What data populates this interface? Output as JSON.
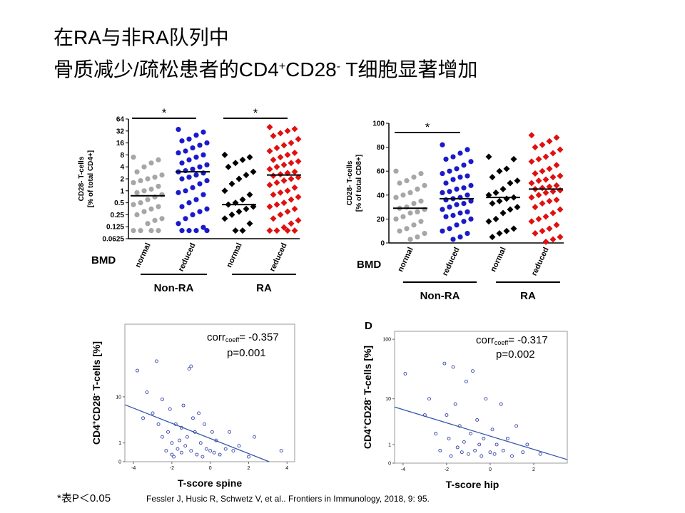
{
  "slide_title": {
    "line1": "在RA与非RA队列中",
    "line2": [
      "骨质减少/疏松患者的CD4",
      "+",
      "CD28",
      "-",
      " T细胞显著增加"
    ]
  },
  "footnote": "*表P＜0.05",
  "citation": "Fessler J, Husic R, Schwetz V, et al.. Frontiers in Immunology, 2018, 9: 95.",
  "chart_data": [
    {
      "type": "strip",
      "ylabel": [
        "CD28- T-cells",
        "[% of total CD4+]"
      ],
      "category_axis_label": "BMD",
      "categories": [
        "normal",
        "reduced",
        "normal",
        "reduced"
      ],
      "groups": [
        {
          "label": "Non-RA",
          "categories": [
            0,
            1
          ]
        },
        {
          "label": "RA",
          "categories": [
            2,
            3
          ]
        }
      ],
      "colors": [
        "#a6a6a6",
        "#1a1acc",
        "#000000",
        "#e01010"
      ],
      "markers": [
        "circle",
        "circle",
        "diamond",
        "diamond"
      ],
      "log_base": 2,
      "ylim": [
        0.0625,
        64
      ],
      "yticks": [
        64,
        32,
        16,
        8,
        4,
        2,
        1,
        0.5,
        0.25,
        0.125,
        0.0625
      ],
      "values": [
        [
          7,
          6,
          5,
          4,
          3,
          2.5,
          2.2,
          2,
          1.8,
          1.6,
          1.3,
          1.1,
          1,
          0.9,
          0.8,
          0.7,
          0.6,
          0.5,
          0.45,
          0.4,
          0.35,
          0.3,
          0.25,
          0.2,
          0.18,
          0.15,
          0.1,
          0.1,
          0.1,
          0.1
        ],
        [
          35,
          30,
          25,
          20,
          18,
          16,
          14,
          12,
          10,
          9,
          8,
          7,
          6,
          5,
          4.5,
          4,
          3.5,
          3.2,
          3,
          2.8,
          2.5,
          2.2,
          2,
          1.8,
          1.5,
          1.2,
          1,
          0.9,
          0.8,
          0.6,
          0.5,
          0.4,
          0.35,
          0.3,
          0.25,
          0.2,
          0.15,
          0.12,
          0.1,
          0.1,
          0.1,
          0.1
        ],
        [
          8,
          7,
          6,
          5,
          4,
          3,
          2.5,
          2,
          1.5,
          1,
          0.8,
          0.6,
          0.5,
          0.45,
          0.4,
          0.35,
          0.3,
          0.25,
          0.2,
          0.15,
          0.1,
          0.1
        ],
        [
          40,
          36,
          32,
          28,
          24,
          20,
          16,
          14,
          12,
          10,
          9,
          8,
          7,
          6,
          5.5,
          5,
          4.5,
          4,
          3.5,
          3,
          2.8,
          2.6,
          2.4,
          2.2,
          2,
          1.8,
          1.6,
          1.4,
          1.2,
          1,
          0.9,
          0.8,
          0.7,
          0.6,
          0.5,
          0.45,
          0.4,
          0.35,
          0.3,
          0.25,
          0.2,
          0.18,
          0.15,
          0.12,
          0.1,
          0.1,
          0.1,
          0.1
        ]
      ],
      "medians": [
        0.75,
        3,
        0.45,
        2.5
      ],
      "significance": [
        {
          "text": "*",
          "between": [
            0,
            1
          ]
        },
        {
          "text": "*",
          "between": [
            2,
            3
          ]
        }
      ]
    },
    {
      "type": "strip",
      "ylabel": [
        "CD28- T-cells",
        "[% of total CD8+]"
      ],
      "category_axis_label": "BMD",
      "categories": [
        "normal",
        "reduced",
        "normal",
        "reduced"
      ],
      "groups": [
        {
          "label": "Non-RA",
          "categories": [
            0,
            1
          ]
        },
        {
          "label": "RA",
          "categories": [
            2,
            3
          ]
        }
      ],
      "colors": [
        "#a6a6a6",
        "#1a1acc",
        "#000000",
        "#e01010"
      ],
      "markers": [
        "circle",
        "circle",
        "diamond",
        "diamond"
      ],
      "ylim": [
        0,
        100
      ],
      "yticks": [
        0,
        20,
        40,
        60,
        80,
        100
      ],
      "values": [
        [
          60,
          58,
          55,
          52,
          50,
          48,
          45,
          42,
          40,
          38,
          35,
          33,
          30,
          29,
          28,
          26,
          25,
          22,
          20,
          18,
          15,
          12,
          10,
          8,
          5,
          3
        ],
        [
          82,
          78,
          75,
          72,
          70,
          68,
          65,
          62,
          60,
          58,
          56,
          55,
          53,
          50,
          48,
          46,
          45,
          43,
          42,
          40,
          38,
          37,
          36,
          35,
          33,
          32,
          30,
          28,
          26,
          25,
          23,
          22,
          20,
          18,
          15,
          12,
          10,
          8,
          5,
          3
        ],
        [
          72,
          70,
          62,
          60,
          55,
          52,
          50,
          45,
          42,
          40,
          38,
          37,
          35,
          33,
          30,
          28,
          25,
          20,
          18,
          12,
          10,
          8,
          5
        ],
        [
          90,
          88,
          85,
          82,
          80,
          78,
          75,
          72,
          70,
          68,
          65,
          62,
          60,
          58,
          56,
          55,
          53,
          52,
          50,
          48,
          47,
          46,
          45,
          44,
          43,
          42,
          40,
          38,
          36,
          35,
          33,
          30,
          28,
          25,
          22,
          20,
          18,
          15,
          12,
          10,
          8,
          5,
          3,
          1
        ]
      ],
      "medians": [
        29,
        37,
        38,
        45
      ],
      "significance": [
        {
          "text": "*",
          "between": [
            0,
            1
          ]
        }
      ]
    },
    {
      "type": "scatter",
      "ylabel": [
        "CD4",
        "+",
        "CD28",
        "-",
        " T-cells [%]"
      ],
      "xlabel": "T-score spine",
      "annotation": [
        "corr",
        "coeff",
        "= -0.357"
      ],
      "p_text": "p=0.001",
      "yscale": "log1p",
      "color": "#3344aa",
      "xlim": [
        -4.45,
        4.4
      ],
      "xticks": [
        -4,
        -2,
        0,
        2,
        4
      ],
      "ylim": [
        0,
        160
      ],
      "yticks": [
        0,
        1,
        10
      ],
      "x": [
        -3.8,
        -3.5,
        -3.3,
        -3,
        -2.8,
        -2.7,
        -2.5,
        -2.5,
        -2.3,
        -2.2,
        -2.1,
        -2,
        -2,
        -1.9,
        -1.8,
        -1.7,
        -1.6,
        -1.5,
        -1.5,
        -1.4,
        -1.3,
        -1.2,
        -1.1,
        -1,
        -1,
        -0.9,
        -0.8,
        -0.7,
        -0.6,
        -0.5,
        -0.4,
        -0.3,
        -0.2,
        0,
        0.1,
        0.2,
        0.3,
        0.5,
        0.8,
        1,
        1.2,
        1.5,
        2,
        2.3,
        3.7
      ],
      "values": [
        28,
        4,
        12,
        5,
        40,
        3,
        1.5,
        9,
        0.5,
        2,
        6,
        0.3,
        1,
        0.2,
        3,
        0.6,
        1.2,
        2.5,
        0.4,
        7,
        0.8,
        1.5,
        30,
        33,
        0.5,
        4,
        2,
        0.3,
        5,
        1,
        0.2,
        3,
        0.6,
        0.5,
        2,
        0.4,
        1.2,
        0.3,
        0.6,
        2,
        0.5,
        0.8,
        0.2,
        1.5,
        0.5
      ],
      "fit": {
        "x": [
          -4.45,
          3.07
        ],
        "y": [
          7.2,
          0
        ]
      }
    },
    {
      "type": "scatter",
      "panel_label": "D",
      "ylabel": [
        "CD4",
        "+",
        "CD28",
        "-",
        " T-cells [%]"
      ],
      "xlabel": "T-score hip",
      "annotation": [
        "corr",
        "coeff",
        "= -0.317"
      ],
      "p_text": "p=0.002",
      "yscale": "log1p",
      "color": "#3344aa",
      "xlim": [
        -4.39,
        3.54
      ],
      "xticks": [
        -4,
        -2,
        0,
        2
      ],
      "ylim": [
        0,
        135
      ],
      "yticks": [
        0,
        1,
        10,
        100
      ],
      "x": [
        -3.9,
        -3,
        -2.8,
        -2.5,
        -2.3,
        -2.1,
        -2,
        -1.9,
        -1.8,
        -1.7,
        -1.6,
        -1.5,
        -1.4,
        -1.3,
        -1.2,
        -1.1,
        -1,
        -0.9,
        -0.8,
        -0.7,
        -0.6,
        -0.5,
        -0.4,
        -0.3,
        -0.2,
        0,
        0.1,
        0.2,
        0.3,
        0.5,
        0.6,
        0.8,
        1,
        1.2,
        1.5,
        1.7,
        2.3
      ],
      "values": [
        27,
        5,
        10,
        2,
        0.6,
        40,
        5,
        1.5,
        0.3,
        35,
        8,
        0.8,
        3,
        0.5,
        1.2,
        20,
        0.4,
        2,
        30,
        0.6,
        4,
        1,
        0.3,
        1.5,
        10,
        0.5,
        2.5,
        0.4,
        1,
        8,
        0.6,
        1.5,
        0.3,
        3,
        0.5,
        1,
        0.4
      ],
      "fit": {
        "x": [
          -4.39,
          3.54
        ],
        "y": [
          7.1,
          0.14
        ]
      }
    }
  ]
}
